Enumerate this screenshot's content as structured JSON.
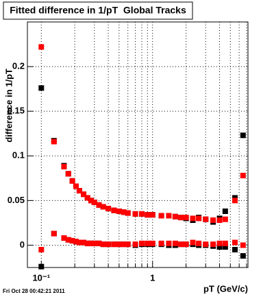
{
  "chart_data": {
    "type": "scatter",
    "title": "Fitted difference in 1/pT  Global Tracks",
    "xlabel": "pT (GeV/c)",
    "ylabel": "difference in 1/pT",
    "footer": "Fri Oct 28 00:42:21 2011",
    "xlog": true,
    "grid": true,
    "xlim": [
      0.075,
      7.2
    ],
    "xticks": [
      {
        "value": 0.1,
        "label": "10⁻¹"
      },
      1
    ],
    "xminor": [
      0.2,
      0.3,
      0.4,
      0.5,
      0.6,
      0.7,
      0.8,
      0.9,
      2,
      3,
      4,
      5,
      6,
      7
    ],
    "ylim": [
      -0.025,
      0.25
    ],
    "yticks": [
      0,
      0.05,
      0.1,
      0.15,
      0.2
    ],
    "x": [
      0.1,
      0.13,
      0.16,
      0.175,
      0.19,
      0.205,
      0.22,
      0.24,
      0.26,
      0.28,
      0.3,
      0.33,
      0.36,
      0.4,
      0.45,
      0.5,
      0.55,
      0.6,
      0.7,
      0.8,
      0.9,
      1.0,
      1.2,
      1.4,
      1.6,
      1.8,
      2.0,
      2.3,
      2.6,
      3.0,
      3.5,
      4.0,
      4.5,
      5.5,
      6.5
    ],
    "series": [
      {
        "color": "#000000",
        "values": [
          0.176,
          0.117,
          0.089,
          0.08,
          0.072,
          0.066,
          0.061,
          0.057,
          0.053,
          0.05,
          0.048,
          0.045,
          0.043,
          0.041,
          0.039,
          0.038,
          0.037,
          0.036,
          0.035,
          0.035,
          0.034,
          0.034,
          0.033,
          0.033,
          0.032,
          0.031,
          0.03,
          0.028,
          0.031,
          0.029,
          0.026,
          0.03,
          0.038,
          0.053,
          0.123
        ]
      },
      {
        "color": "#000000",
        "values": [
          -0.024,
          0.013,
          0.008,
          0.006,
          0.005,
          0.004,
          0.003,
          0.003,
          0.002,
          0.002,
          0.002,
          0.002,
          0.001,
          0.001,
          0.001,
          0.001,
          0.001,
          0.001,
          0.0,
          0.001,
          0.001,
          0.001,
          0.001,
          0.0,
          0.0,
          0.001,
          0.001,
          0.001,
          0.0,
          0.0,
          -0.001,
          -0.002,
          -0.002,
          -0.005,
          -0.012
        ]
      },
      {
        "color": "#ff0000",
        "values": [
          0.222,
          0.116,
          0.088,
          0.08,
          0.072,
          0.066,
          0.061,
          0.057,
          0.053,
          0.05,
          0.048,
          0.045,
          0.043,
          0.041,
          0.039,
          0.038,
          0.037,
          0.036,
          0.035,
          0.035,
          0.034,
          0.034,
          0.033,
          0.033,
          0.032,
          0.031,
          0.031,
          0.03,
          0.03,
          0.029,
          0.028,
          0.028,
          0.029,
          0.05,
          0.078
        ]
      },
      {
        "color": "#ff0000",
        "values": [
          -0.005,
          0.013,
          0.008,
          0.006,
          0.005,
          0.004,
          0.003,
          0.003,
          0.002,
          0.002,
          0.002,
          0.002,
          0.001,
          0.001,
          0.001,
          0.001,
          0.001,
          0.001,
          0.001,
          0.002,
          0.002,
          0.002,
          0.002,
          0.002,
          0.002,
          0.001,
          0.001,
          0.003,
          0.002,
          0.001,
          0.001,
          0.002,
          0.002,
          0.003,
          0.0
        ]
      }
    ]
  }
}
